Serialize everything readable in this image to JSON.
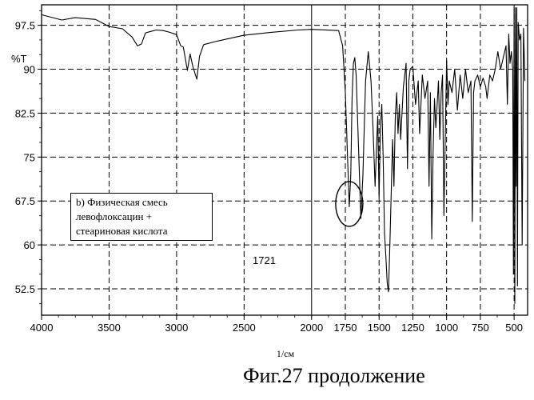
{
  "chart_data": {
    "type": "line",
    "title": "",
    "xlabel": "1/см",
    "ylabel": "%T",
    "xlim": [
      4000,
      400
    ],
    "ylim": [
      48,
      101
    ],
    "x_ticks": [
      4000,
      3500,
      3000,
      2500,
      2000,
      1750,
      1500,
      1250,
      1000,
      750,
      500
    ],
    "y_ticks": [
      52.5,
      60,
      67.5,
      75,
      82.5,
      90,
      97.5
    ],
    "y_tick_labels": [
      "52.5",
      "60",
      "67.5",
      "75",
      "82.5",
      "90",
      "97.5"
    ],
    "grid": true,
    "series": [
      {
        "x": [
          4000,
          3950,
          3850,
          3750,
          3600,
          3500,
          3400,
          3330,
          3290,
          3260,
          3230,
          3200,
          3150,
          3100,
          3050,
          3000,
          2970,
          2950,
          2920,
          2900,
          2880,
          2850,
          2830,
          2800,
          2700,
          2500,
          2300,
          2100,
          2000,
          1800,
          1770,
          1750,
          1735,
          1721,
          1710,
          1700,
          1690,
          1680,
          1670,
          1650,
          1635,
          1620,
          1600,
          1580,
          1560,
          1545,
          1530,
          1520,
          1510,
          1500,
          1490,
          1480,
          1470,
          1460,
          1450,
          1440,
          1430,
          1420,
          1400,
          1390,
          1380,
          1370,
          1360,
          1350,
          1340,
          1320,
          1300,
          1290,
          1280,
          1270,
          1250,
          1230,
          1210,
          1200,
          1180,
          1160,
          1140,
          1130,
          1120,
          1110,
          1100,
          1090,
          1080,
          1060,
          1050,
          1040,
          1030,
          1020,
          1000,
          990,
          980,
          960,
          940,
          920,
          900,
          880,
          860,
          840,
          820,
          810,
          800,
          790,
          770,
          750,
          730,
          710,
          700,
          680,
          660,
          640,
          620,
          600,
          580,
          560,
          550,
          540,
          530,
          520,
          510,
          505,
          500,
          495,
          490,
          485,
          480,
          475,
          470,
          460,
          450,
          440,
          430,
          420
        ],
        "y": [
          99.3,
          99.0,
          98.4,
          98.8,
          98.5,
          97.3,
          96.9,
          95.5,
          94.0,
          94.3,
          96.2,
          96.4,
          96.7,
          96.6,
          96.3,
          95.9,
          94.0,
          93.8,
          89.8,
          92.6,
          90.5,
          88.3,
          92.2,
          94.2,
          94.8,
          95.8,
          96.3,
          96.7,
          96.8,
          96.6,
          94.0,
          86.0,
          76.0,
          66.5,
          72.0,
          85.0,
          91.0,
          92.0,
          89.0,
          75.0,
          64.5,
          72.0,
          88.0,
          93.0,
          88.0,
          80.0,
          70.0,
          76.0,
          82.0,
          68.0,
          80.0,
          84.0,
          75.0,
          62.0,
          58.0,
          53.5,
          52.0,
          60.0,
          78.0,
          70.0,
          82.0,
          86.0,
          79.0,
          84.0,
          78.0,
          87.0,
          91.0,
          73.0,
          88.0,
          90.0,
          90.5,
          84.0,
          88.0,
          79.0,
          89.0,
          85.0,
          88.0,
          70.0,
          86.0,
          61.0,
          76.0,
          85.0,
          80.0,
          88.0,
          78.0,
          86.0,
          89.0,
          65.0,
          91.5,
          84.0,
          88.0,
          86.0,
          90.0,
          83.0,
          89.0,
          85.0,
          90.0,
          86.0,
          88.0,
          64.0,
          86.0,
          88.0,
          89.0,
          87.0,
          88.5,
          87.0,
          85.0,
          89.0,
          88.0,
          90.0,
          93.0,
          90.0,
          92.0,
          94.0,
          84.0,
          96.0,
          91.0,
          93.0,
          90.0,
          55.0,
          100.5,
          50.0,
          100.5,
          70.0,
          100.5,
          53.0,
          98.0,
          95.0,
          96.0,
          60.0,
          97.0,
          88.0
        ]
      }
    ],
    "annotations": {
      "legend_lines": [
        "b) Физическая смесь",
        "левофлоксацин +",
        "стеариновая кислота"
      ],
      "peak_label": "1721",
      "peak_x": 1721,
      "peak_y": 67
    },
    "caption": "Фиг.27 продолжение"
  }
}
